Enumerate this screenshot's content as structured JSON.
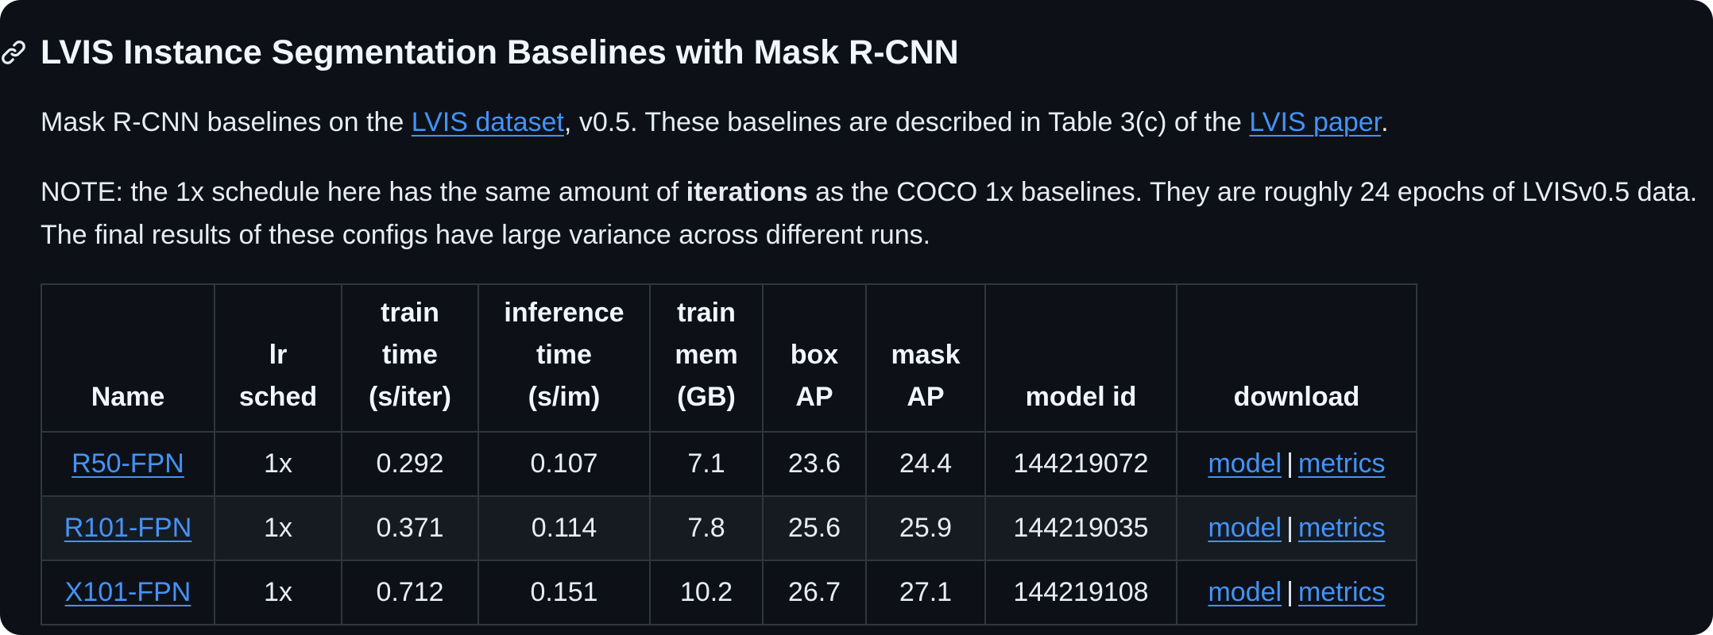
{
  "section": {
    "title": "LVIS Instance Segmentation Baselines with Mask R-CNN",
    "anchor_icon": "link-icon"
  },
  "intro": {
    "prefix": "Mask R-CNN baselines on the ",
    "dataset_link": "LVIS dataset",
    "middle": ", v0.5. These baselines are described in Table 3(c) of the ",
    "paper_link": "LVIS paper",
    "suffix": "."
  },
  "note": {
    "prefix": "NOTE: the 1x schedule here has the same amount of ",
    "bold": "iterations",
    "suffix": " as the COCO 1x baselines. They are roughly 24 epochs of LVISv0.5 data. The final results of these configs have large variance across different runs."
  },
  "table": {
    "headers": {
      "name": "Name",
      "lr_sched_1": "lr",
      "lr_sched_2": "sched",
      "train_time_1": "train",
      "train_time_2": "time",
      "train_time_3": "(s/iter)",
      "inference_time_1": "inference",
      "inference_time_2": "time",
      "inference_time_3": "(s/im)",
      "train_mem_1": "train",
      "train_mem_2": "mem",
      "train_mem_3": "(GB)",
      "box_ap_1": "box",
      "box_ap_2": "AP",
      "mask_ap_1": "mask",
      "mask_ap_2": "AP",
      "model_id": "model id",
      "download": "download"
    },
    "rows": [
      {
        "name": "R50-FPN",
        "lr_sched": "1x",
        "train_time": "0.292",
        "inference_time": "0.107",
        "train_mem": "7.1",
        "box_ap": "23.6",
        "mask_ap": "24.4",
        "model_id": "144219072",
        "model_link": "model",
        "separator": "|",
        "metrics_link": "metrics"
      },
      {
        "name": "R101-FPN",
        "lr_sched": "1x",
        "train_time": "0.371",
        "inference_time": "0.114",
        "train_mem": "7.8",
        "box_ap": "25.6",
        "mask_ap": "25.9",
        "model_id": "144219035",
        "model_link": "model",
        "separator": "|",
        "metrics_link": "metrics"
      },
      {
        "name": "X101-FPN",
        "lr_sched": "1x",
        "train_time": "0.712",
        "inference_time": "0.151",
        "train_mem": "10.2",
        "box_ap": "26.7",
        "mask_ap": "27.1",
        "model_id": "144219108",
        "model_link": "model",
        "separator": "|",
        "metrics_link": "metrics"
      }
    ]
  },
  "colors": {
    "background": "#0d1117",
    "text": "#e6edf3",
    "link": "#4493f8",
    "border": "#30363d",
    "row_alt": "#161b22"
  }
}
